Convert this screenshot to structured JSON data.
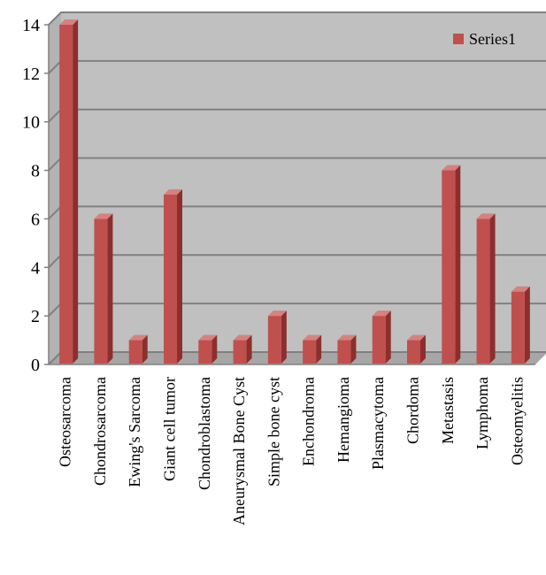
{
  "chart_data": {
    "type": "bar",
    "style": "3d-column",
    "categories": [
      "Osteosarcoma",
      "Chondrosarcoma",
      "Ewing's Sarcoma",
      "Giant cell tumor",
      "Chondroblastoma",
      "Aneurysmal Bone Cyst",
      "Simple bone cyst",
      "Enchondroma",
      "Hemangioma",
      "Plasmacytoma",
      "Chordoma",
      "Metastasis",
      "Lymphoma",
      "Osteomyelitis"
    ],
    "series": [
      {
        "name": "Series1",
        "values": [
          14,
          6,
          1,
          7,
          1,
          1,
          2,
          1,
          1,
          2,
          1,
          8,
          6,
          3
        ],
        "color": "#c0504d"
      }
    ],
    "yticks": [
      "0",
      "2",
      "4",
      "6",
      "8",
      "10",
      "12",
      "14"
    ],
    "ylim": [
      0,
      14
    ],
    "grid": true,
    "legend_position": "top-right",
    "colors": {
      "back_wall": "#c0c0c0",
      "floor": "#a6a6a6",
      "gridline": "#808080",
      "bar_front": "#c0504d",
      "bar_side": "#8c2f2c",
      "bar_top": "#d9807d"
    }
  }
}
